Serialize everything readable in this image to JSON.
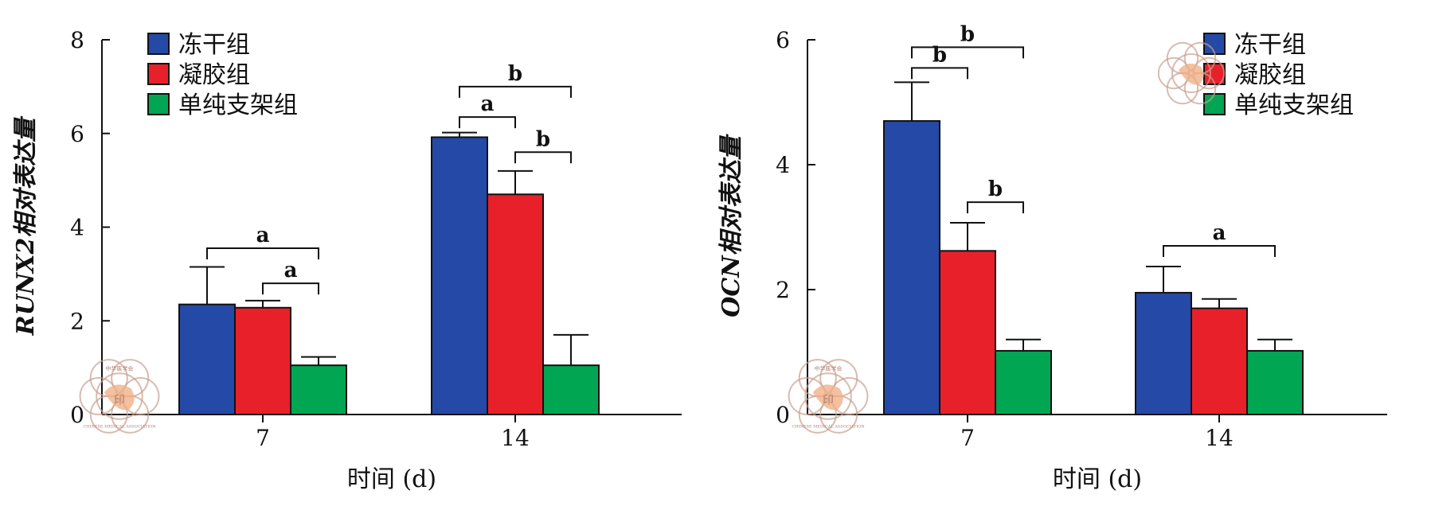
{
  "chart_data": [
    {
      "type": "bar",
      "ylabel": "RUNX2相对表达量",
      "xlabel": "时间 (d)",
      "categories": [
        "7",
        "14"
      ],
      "ylim": [
        0,
        8
      ],
      "yticks": [
        0,
        2,
        4,
        6,
        8
      ],
      "series": [
        {
          "name": "冻干组",
          "color": "#2549a6",
          "values": [
            2.35,
            5.92
          ],
          "errors": [
            0.8,
            0.1
          ]
        },
        {
          "name": "凝胶组",
          "color": "#e8202a",
          "values": [
            2.28,
            4.7
          ],
          "errors": [
            0.15,
            0.5
          ]
        },
        {
          "name": "单纯支架组",
          "color": "#00a652",
          "values": [
            1.05,
            1.05
          ],
          "errors": [
            0.18,
            0.65
          ]
        }
      ],
      "legend_position": "top-left",
      "significance": [
        {
          "group": 0,
          "from": 0,
          "to": 2,
          "label": "a",
          "level": 3.55
        },
        {
          "group": 0,
          "from": 1,
          "to": 2,
          "label": "a",
          "level": 2.8
        },
        {
          "group": 1,
          "from": 0,
          "to": 2,
          "label": "b",
          "level": 7.0
        },
        {
          "group": 1,
          "from": 0,
          "to": 1,
          "label": "a",
          "level": 6.35
        },
        {
          "group": 1,
          "from": 1,
          "to": 2,
          "label": "b",
          "level": 5.6
        }
      ]
    },
    {
      "type": "bar",
      "ylabel": "OCN相对表达量",
      "xlabel": "时间 (d)",
      "categories": [
        "7",
        "14"
      ],
      "ylim": [
        0,
        6
      ],
      "yticks": [
        0,
        2,
        4,
        6
      ],
      "series": [
        {
          "name": "冻干组",
          "color": "#2549a6",
          "values": [
            4.7,
            1.95
          ],
          "errors": [
            0.62,
            0.42
          ]
        },
        {
          "name": "凝胶组",
          "color": "#e8202a",
          "values": [
            2.62,
            1.7
          ],
          "errors": [
            0.45,
            0.15
          ]
        },
        {
          "name": "单纯支架组",
          "color": "#00a652",
          "values": [
            1.02,
            1.02
          ],
          "errors": [
            0.18,
            0.18
          ]
        }
      ],
      "legend_position": "top-right",
      "significance": [
        {
          "group": 0,
          "from": 0,
          "to": 2,
          "label": "b",
          "level": 5.88
        },
        {
          "group": 0,
          "from": 0,
          "to": 1,
          "label": "b",
          "level": 5.55
        },
        {
          "group": 0,
          "from": 1,
          "to": 2,
          "label": "b",
          "level": 3.4
        },
        {
          "group": 1,
          "from": 0,
          "to": 2,
          "label": "a",
          "level": 2.7
        }
      ]
    }
  ],
  "watermark": {
    "title": "中华医学会",
    "subtitle": "CHINESE MEDICAL ASSOCIATION",
    "symbol": "印"
  }
}
